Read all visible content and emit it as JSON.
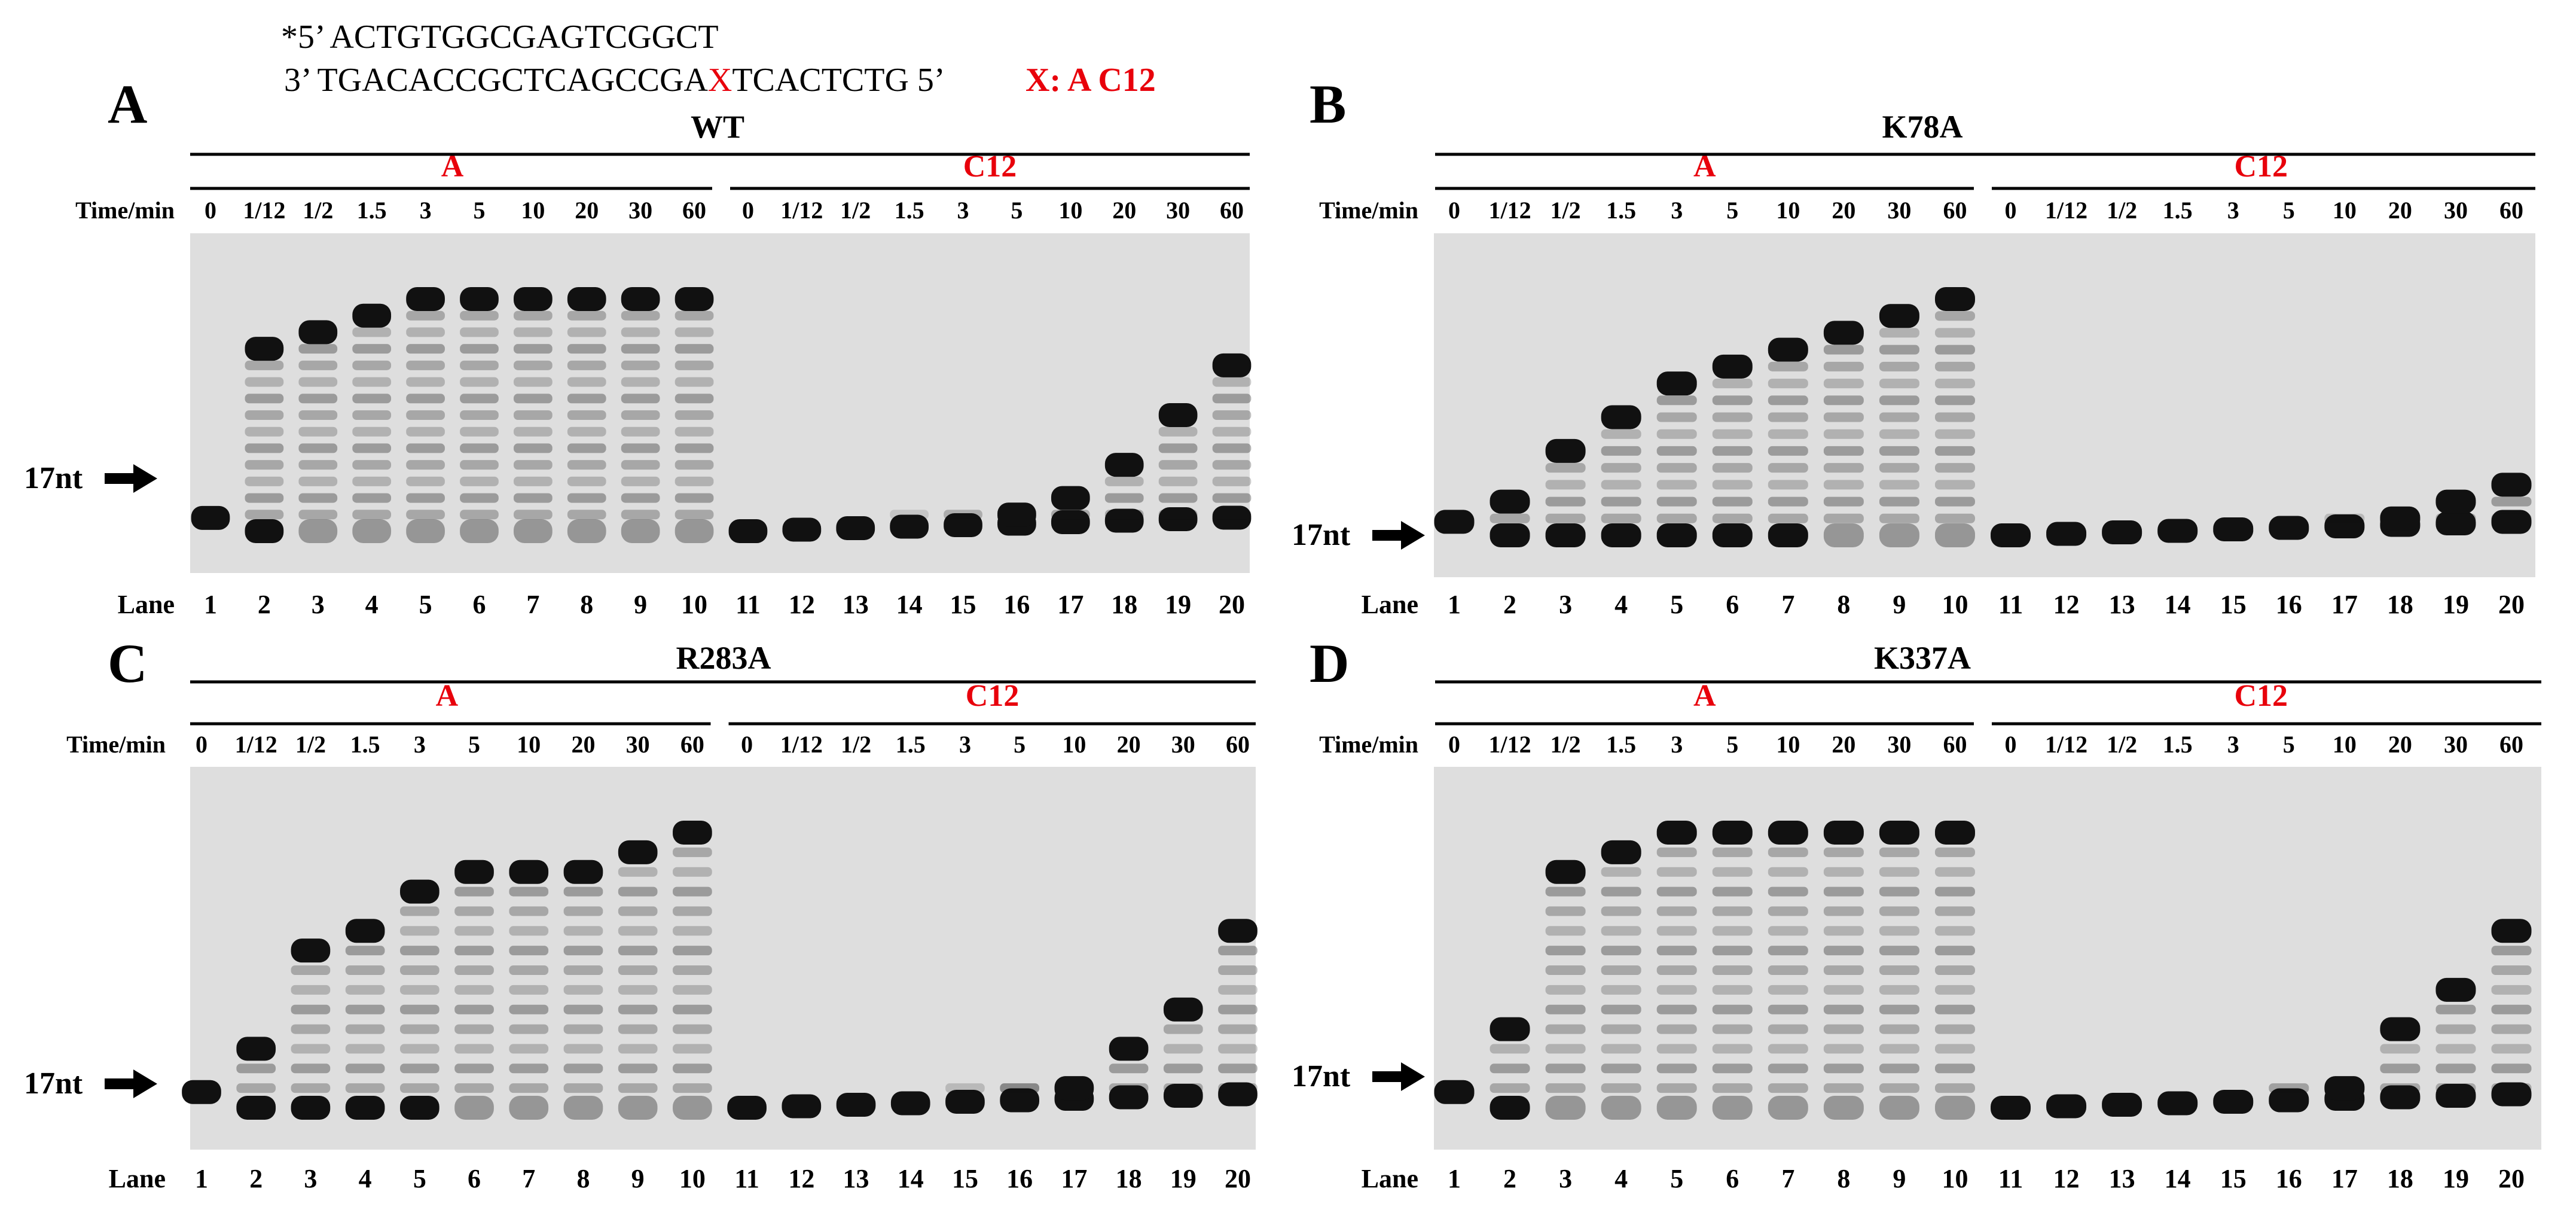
{
  "colors": {
    "red": "#e8000b",
    "black": "#000000",
    "gel_bg": "#dedede",
    "band": "#111111"
  },
  "header": {
    "line1": "*5’ ACTGTGGCGAGTCGGCT",
    "line2_prefix": "3’ TGACACCGCTCAGCCGA",
    "line2_x": "X",
    "line2_suffix": "TCACTCTG 5’",
    "legend": "X:  A  C12"
  },
  "common": {
    "time_label": "Time/min",
    "lane_label": "Lane",
    "marker_label": "17nt",
    "group_a": "A",
    "group_c12": "C12",
    "time_points": [
      "0",
      "1/12",
      "1/2",
      "1.5",
      "3",
      "5",
      "10",
      "20",
      "30",
      "60"
    ],
    "lanes": [
      "1",
      "2",
      "3",
      "4",
      "5",
      "6",
      "7",
      "8",
      "9",
      "10",
      "11",
      "12",
      "13",
      "14",
      "15",
      "16",
      "17",
      "18",
      "19",
      "20"
    ]
  },
  "panels": [
    {
      "letter": "A",
      "title": "WT",
      "a_products": [
        0,
        11,
        12,
        13,
        14,
        14,
        14,
        14,
        14,
        14
      ],
      "c12_products": [
        0,
        0,
        0,
        0.2,
        0.4,
        1,
        2,
        4,
        7,
        10
      ]
    },
    {
      "letter": "B",
      "title": "K78A",
      "a_products": [
        0,
        2,
        5,
        7,
        9,
        10,
        11,
        12,
        13,
        14
      ],
      "c12_products": [
        0,
        0,
        0,
        0,
        0,
        0,
        0.3,
        1,
        2,
        3
      ]
    },
    {
      "letter": "C",
      "title": "R283A",
      "a_products": [
        0,
        3,
        8,
        9,
        11,
        12,
        12,
        12,
        13,
        14
      ],
      "c12_products": [
        0,
        0,
        0,
        0,
        0.3,
        0.7,
        1.5,
        3,
        5,
        9
      ]
    },
    {
      "letter": "D",
      "title": "K337A",
      "a_products": [
        0,
        4,
        12,
        13,
        14,
        14,
        14,
        14,
        14,
        14
      ],
      "c12_products": [
        0,
        0,
        0,
        0,
        0,
        0.5,
        1.5,
        4,
        6,
        9
      ]
    }
  ]
}
